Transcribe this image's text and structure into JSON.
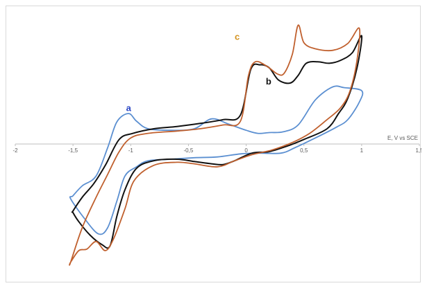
{
  "chart_data": {
    "type": "line",
    "xlabel": "E, V vs SCE",
    "ylabel": "",
    "xlim": [
      -2,
      1.5
    ],
    "ylim": [
      -1.55,
      1.55
    ],
    "x_ticks": [
      "-2",
      "-1,5",
      "-1",
      "-0,5",
      "0",
      "0,5",
      "1",
      "1,5"
    ],
    "x_tick_values": [
      -2,
      -1.5,
      -1,
      -0.5,
      0,
      0.5,
      1,
      1.5
    ],
    "grid": false,
    "legend": "none",
    "series": [
      {
        "name": "a",
        "color": "#5b8fd1",
        "label_at": [
          -1.04,
          0.43
        ],
        "points": [
          [
            -1.5,
            -0.68
          ],
          [
            -1.42,
            -0.55
          ],
          [
            -1.3,
            -0.42
          ],
          [
            -1.2,
            -0.05
          ],
          [
            -1.12,
            0.29
          ],
          [
            -1.02,
            0.4
          ],
          [
            -0.95,
            0.3
          ],
          [
            -0.85,
            0.2
          ],
          [
            -0.65,
            0.18
          ],
          [
            -0.45,
            0.2
          ],
          [
            -0.3,
            0.33
          ],
          [
            -0.15,
            0.26
          ],
          [
            0,
            0.18
          ],
          [
            0.1,
            0.14
          ],
          [
            0.2,
            0.15
          ],
          [
            0.32,
            0.16
          ],
          [
            0.45,
            0.25
          ],
          [
            0.6,
            0.58
          ],
          [
            0.75,
            0.75
          ],
          [
            0.85,
            0.74
          ],
          [
            1,
            0.7
          ],
          [
            0.98,
            0.55
          ],
          [
            0.88,
            0.32
          ],
          [
            0.78,
            0.22
          ],
          [
            0.6,
            0.08
          ],
          [
            0.42,
            -0.05
          ],
          [
            0.3,
            -0.12
          ],
          [
            0.1,
            -0.12
          ],
          [
            -0.05,
            -0.13
          ],
          [
            -0.25,
            -0.17
          ],
          [
            -0.45,
            -0.18
          ],
          [
            -0.65,
            -0.2
          ],
          [
            -0.85,
            -0.22
          ],
          [
            -0.95,
            -0.3
          ],
          [
            -1.05,
            -0.42
          ],
          [
            -1.12,
            -0.75
          ],
          [
            -1.2,
            -1.1
          ],
          [
            -1.28,
            -1.18
          ],
          [
            -1.4,
            -0.98
          ],
          [
            -1.52,
            -0.72
          ]
        ]
      },
      {
        "name": "b",
        "color": "#111111",
        "label_at": [
          0.17,
          0.78
        ],
        "points": [
          [
            -1.5,
            -0.88
          ],
          [
            -1.42,
            -0.7
          ],
          [
            -1.32,
            -0.52
          ],
          [
            -1.22,
            -0.28
          ],
          [
            -1.1,
            0.06
          ],
          [
            -0.98,
            0.14
          ],
          [
            -0.8,
            0.2
          ],
          [
            -0.6,
            0.23
          ],
          [
            -0.4,
            0.27
          ],
          [
            -0.2,
            0.32
          ],
          [
            -0.05,
            0.38
          ],
          [
            0.04,
            0.98
          ],
          [
            0.12,
            1.04
          ],
          [
            0.2,
            1.0
          ],
          [
            0.28,
            0.84
          ],
          [
            0.38,
            0.8
          ],
          [
            0.45,
            0.9
          ],
          [
            0.52,
            1.06
          ],
          [
            0.62,
            1.08
          ],
          [
            0.72,
            1.06
          ],
          [
            0.82,
            1.1
          ],
          [
            0.92,
            1.2
          ],
          [
            1,
            1.42
          ],
          [
            0.96,
            1.0
          ],
          [
            0.88,
            0.6
          ],
          [
            0.8,
            0.4
          ],
          [
            0.7,
            0.2
          ],
          [
            0.5,
            0.06
          ],
          [
            0.35,
            -0.03
          ],
          [
            0.2,
            -0.1
          ],
          [
            0.05,
            -0.12
          ],
          [
            -0.1,
            -0.22
          ],
          [
            -0.2,
            -0.27
          ],
          [
            -0.3,
            -0.26
          ],
          [
            -0.45,
            -0.23
          ],
          [
            -0.6,
            -0.2
          ],
          [
            -0.8,
            -0.22
          ],
          [
            -0.95,
            -0.32
          ],
          [
            -1.05,
            -0.6
          ],
          [
            -1.12,
            -0.95
          ],
          [
            -1.18,
            -1.34
          ],
          [
            -1.25,
            -1.32
          ],
          [
            -1.35,
            -1.2
          ],
          [
            -1.45,
            -1.02
          ],
          [
            -1.5,
            -0.9
          ]
        ]
      },
      {
        "name": "c",
        "color": "#c0602e",
        "label_at": [
          -0.1,
          1.37
        ],
        "points": [
          [
            -1.52,
            -1.55
          ],
          [
            -1.42,
            -1.1
          ],
          [
            -1.3,
            -0.7
          ],
          [
            -1.2,
            -0.4
          ],
          [
            -1.1,
            -0.1
          ],
          [
            -1.0,
            0.08
          ],
          [
            -0.85,
            0.14
          ],
          [
            -0.6,
            0.17
          ],
          [
            -0.4,
            0.2
          ],
          [
            -0.2,
            0.25
          ],
          [
            -0.05,
            0.3
          ],
          [
            0.02,
            0.9
          ],
          [
            0.08,
            1.08
          ],
          [
            0.18,
            1.02
          ],
          [
            0.27,
            0.92
          ],
          [
            0.33,
            0.93
          ],
          [
            0.4,
            1.18
          ],
          [
            0.45,
            1.56
          ],
          [
            0.5,
            1.33
          ],
          [
            0.6,
            1.25
          ],
          [
            0.75,
            1.23
          ],
          [
            0.88,
            1.32
          ],
          [
            0.98,
            1.52
          ],
          [
            0.96,
            1.1
          ],
          [
            0.9,
            0.7
          ],
          [
            0.82,
            0.48
          ],
          [
            0.7,
            0.32
          ],
          [
            0.55,
            0.14
          ],
          [
            0.4,
            0.02
          ],
          [
            0.22,
            -0.08
          ],
          [
            0.05,
            -0.14
          ],
          [
            -0.1,
            -0.22
          ],
          [
            -0.25,
            -0.3
          ],
          [
            -0.45,
            -0.26
          ],
          [
            -0.6,
            -0.24
          ],
          [
            -0.8,
            -0.28
          ],
          [
            -0.97,
            -0.48
          ],
          [
            -1.05,
            -0.85
          ],
          [
            -1.15,
            -1.25
          ],
          [
            -1.22,
            -1.4
          ],
          [
            -1.3,
            -1.28
          ],
          [
            -1.38,
            -1.38
          ],
          [
            -1.45,
            -1.4
          ],
          [
            -1.52,
            -1.55
          ]
        ]
      }
    ]
  }
}
